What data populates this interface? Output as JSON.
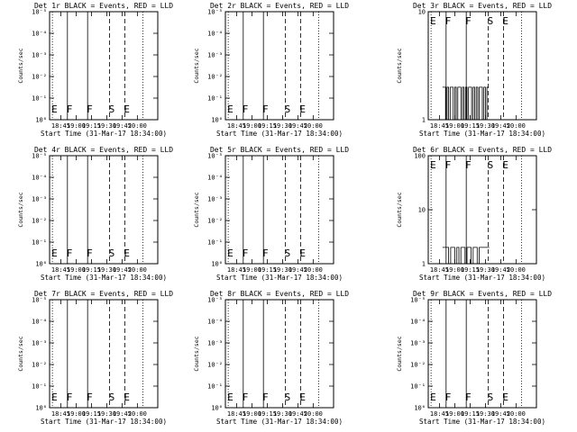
{
  "figure": {
    "x_tick_labels": [
      "18:45",
      "19:00",
      "19:15",
      "19:30",
      "19:45",
      "20:00"
    ],
    "xlabel": "Start Time (31-Mar-17 18:34:00)",
    "ylabel": "Counts/sec",
    "event_letters": [
      "E",
      "F",
      "F",
      "S",
      "E"
    ],
    "colors": {
      "events": "#000000",
      "lld": "#ff0000",
      "background": "#ffffff"
    }
  },
  "chart_data": [
    {
      "id": "1r",
      "type": "line",
      "title": "Det 1r BLACK = Events, RED = LLD",
      "yscale": "log",
      "y_tick_labels": [
        "10⁰",
        "10⁻¹",
        "10⁻²",
        "10⁻³",
        "10⁻⁴",
        "10⁻⁵"
      ],
      "xlim": [
        "18:34:00",
        "20:20:00"
      ],
      "event_markers": [
        {
          "label": "E",
          "time": "18:36:45",
          "style": "dotted"
        },
        {
          "label": "F",
          "time": "18:51:30",
          "style": "solid"
        },
        {
          "label": "F",
          "time": "19:11:15",
          "style": "solid"
        },
        {
          "label": "S",
          "time": "19:32:50",
          "style": "dashed"
        },
        {
          "label": "E",
          "time": "19:47:40",
          "style": "dashed"
        },
        {
          "label": "",
          "time": "20:05:20",
          "style": "dotted"
        }
      ],
      "series": []
    },
    {
      "id": "2r",
      "type": "line",
      "title": "Det 2r BLACK = Events, RED = LLD",
      "yscale": "log",
      "y_tick_labels": [
        "10⁰",
        "10⁻¹",
        "10⁻²",
        "10⁻³",
        "10⁻⁴",
        "10⁻⁵"
      ],
      "xlim": [
        "18:34:00",
        "20:20:00"
      ],
      "event_markers": [
        {
          "label": "E",
          "time": "18:36:45",
          "style": "dotted"
        },
        {
          "label": "F",
          "time": "18:51:30",
          "style": "solid"
        },
        {
          "label": "F",
          "time": "19:11:15",
          "style": "solid"
        },
        {
          "label": "S",
          "time": "19:32:50",
          "style": "dashed"
        },
        {
          "label": "E",
          "time": "19:47:40",
          "style": "dashed"
        },
        {
          "label": "",
          "time": "20:05:20",
          "style": "dotted"
        }
      ],
      "series": []
    },
    {
      "id": "3r",
      "type": "line",
      "title": "Det 3r BLACK = Events, RED = LLD",
      "yscale": "log",
      "y_tick_labels": [
        "1",
        "10"
      ],
      "xlim": [
        "18:34:00",
        "20:20:00"
      ],
      "event_markers": [
        {
          "label": "E",
          "time": "18:36:45",
          "style": "dotted"
        },
        {
          "label": "F",
          "time": "18:51:30",
          "style": "solid"
        },
        {
          "label": "F",
          "time": "19:11:15",
          "style": "solid"
        },
        {
          "label": "S",
          "time": "19:32:50",
          "style": "dashed"
        },
        {
          "label": "E",
          "time": "19:47:40",
          "style": "dashed"
        },
        {
          "label": "",
          "time": "20:05:20",
          "style": "dotted"
        }
      ],
      "series": [
        {
          "role": "events",
          "color": "#000000",
          "times": [
            "18:48:00",
            "18:49:30",
            "18:51:00",
            "18:52:30",
            "18:54:00",
            "18:55:30",
            "18:57:00",
            "18:58:30",
            "19:00:00",
            "19:01:30",
            "19:03:00",
            "19:04:30",
            "19:06:00",
            "19:07:30",
            "19:09:00",
            "19:10:30",
            "19:12:00",
            "19:13:30",
            "19:15:00",
            "19:16:30",
            "19:18:00",
            "19:19:30",
            "19:21:00",
            "19:22:30",
            "19:24:00",
            "19:25:30",
            "19:27:00",
            "19:28:30",
            "19:30:00",
            "19:31:30"
          ],
          "values": [
            2,
            2,
            1,
            2,
            1,
            2,
            2,
            1,
            2,
            1,
            2,
            2,
            1,
            2,
            1,
            2,
            1,
            2,
            2,
            1,
            2,
            1,
            2,
            1,
            2,
            2,
            1,
            2,
            1,
            2
          ]
        }
      ]
    },
    {
      "id": "4r",
      "type": "line",
      "title": "Det 4r BLACK = Events, RED = LLD",
      "yscale": "log",
      "y_tick_labels": [
        "10⁰",
        "10⁻¹",
        "10⁻²",
        "10⁻³",
        "10⁻⁴",
        "10⁻⁵"
      ],
      "xlim": [
        "18:34:00",
        "20:20:00"
      ],
      "event_markers": [
        {
          "label": "E",
          "time": "18:36:45",
          "style": "dotted"
        },
        {
          "label": "F",
          "time": "18:51:30",
          "style": "solid"
        },
        {
          "label": "F",
          "time": "19:11:15",
          "style": "solid"
        },
        {
          "label": "S",
          "time": "19:32:50",
          "style": "dashed"
        },
        {
          "label": "E",
          "time": "19:47:40",
          "style": "dashed"
        },
        {
          "label": "",
          "time": "20:05:20",
          "style": "dotted"
        }
      ],
      "series": []
    },
    {
      "id": "5r",
      "type": "line",
      "title": "Det 5r BLACK = Events, RED = LLD",
      "yscale": "log",
      "y_tick_labels": [
        "10⁰",
        "10⁻¹",
        "10⁻²",
        "10⁻³",
        "10⁻⁴",
        "10⁻⁵"
      ],
      "xlim": [
        "18:34:00",
        "20:20:00"
      ],
      "event_markers": [
        {
          "label": "E",
          "time": "18:36:45",
          "style": "dotted"
        },
        {
          "label": "F",
          "time": "18:51:30",
          "style": "solid"
        },
        {
          "label": "F",
          "time": "19:11:15",
          "style": "solid"
        },
        {
          "label": "S",
          "time": "19:32:50",
          "style": "dashed"
        },
        {
          "label": "E",
          "time": "19:47:40",
          "style": "dashed"
        },
        {
          "label": "",
          "time": "20:05:20",
          "style": "dotted"
        }
      ],
      "series": []
    },
    {
      "id": "6r",
      "type": "line",
      "title": "Det 6r BLACK = Events, RED = LLD",
      "yscale": "log",
      "y_tick_labels": [
        "1",
        "10",
        "100"
      ],
      "xlim": [
        "18:34:00",
        "20:20:00"
      ],
      "event_markers": [
        {
          "label": "E",
          "time": "18:36:45",
          "style": "dotted"
        },
        {
          "label": "F",
          "time": "18:51:30",
          "style": "solid"
        },
        {
          "label": "F",
          "time": "19:11:15",
          "style": "solid"
        },
        {
          "label": "S",
          "time": "19:32:50",
          "style": "dashed"
        },
        {
          "label": "E",
          "time": "19:47:40",
          "style": "dashed"
        },
        {
          "label": "",
          "time": "20:05:20",
          "style": "dotted"
        }
      ],
      "series": [
        {
          "role": "events",
          "color": "#000000",
          "times": [
            "18:48:00",
            "18:50:00",
            "18:52:00",
            "18:54:00",
            "18:56:00",
            "18:58:00",
            "19:00:00",
            "19:02:00",
            "19:04:00",
            "19:06:00",
            "19:08:00",
            "19:10:00",
            "19:12:00",
            "19:14:00",
            "19:16:00",
            "19:18:00",
            "19:20:00",
            "19:22:00",
            "19:24:00",
            "19:26:00",
            "19:28:00",
            "19:30:00",
            "19:32:00"
          ],
          "values": [
            2,
            2,
            2,
            1,
            2,
            2,
            1,
            2,
            1,
            2,
            2,
            1,
            2,
            2,
            1,
            2,
            2,
            1,
            2,
            2,
            2,
            2,
            2
          ]
        }
      ]
    },
    {
      "id": "7r",
      "type": "line",
      "title": "Det 7r BLACK = Events, RED = LLD",
      "yscale": "log",
      "y_tick_labels": [
        "10⁰",
        "10⁻¹",
        "10⁻²",
        "10⁻³",
        "10⁻⁴",
        "10⁻⁵"
      ],
      "xlim": [
        "18:34:00",
        "20:20:00"
      ],
      "event_markers": [
        {
          "label": "E",
          "time": "18:36:45",
          "style": "dotted"
        },
        {
          "label": "F",
          "time": "18:51:30",
          "style": "solid"
        },
        {
          "label": "F",
          "time": "19:11:15",
          "style": "solid"
        },
        {
          "label": "S",
          "time": "19:32:50",
          "style": "dashed"
        },
        {
          "label": "E",
          "time": "19:47:40",
          "style": "dashed"
        },
        {
          "label": "",
          "time": "20:05:20",
          "style": "dotted"
        }
      ],
      "series": []
    },
    {
      "id": "8r",
      "type": "line",
      "title": "Det 8r BLACK = Events, RED = LLD",
      "yscale": "log",
      "y_tick_labels": [
        "10⁰",
        "10⁻¹",
        "10⁻²",
        "10⁻³",
        "10⁻⁴",
        "10⁻⁵"
      ],
      "xlim": [
        "18:34:00",
        "20:20:00"
      ],
      "event_markers": [
        {
          "label": "E",
          "time": "18:36:45",
          "style": "dotted"
        },
        {
          "label": "F",
          "time": "18:51:30",
          "style": "solid"
        },
        {
          "label": "F",
          "time": "19:11:15",
          "style": "solid"
        },
        {
          "label": "S",
          "time": "19:32:50",
          "style": "dashed"
        },
        {
          "label": "E",
          "time": "19:47:40",
          "style": "dashed"
        },
        {
          "label": "",
          "time": "20:05:20",
          "style": "dotted"
        }
      ],
      "series": []
    },
    {
      "id": "9r",
      "type": "line",
      "title": "Det 9r BLACK = Events, RED = LLD",
      "yscale": "log",
      "y_tick_labels": [
        "10⁰",
        "10⁻¹",
        "10⁻²",
        "10⁻³",
        "10⁻⁴",
        "10⁻⁵"
      ],
      "xlim": [
        "18:34:00",
        "20:20:00"
      ],
      "event_markers": [
        {
          "label": "E",
          "time": "18:36:45",
          "style": "dotted"
        },
        {
          "label": "F",
          "time": "18:51:30",
          "style": "solid"
        },
        {
          "label": "F",
          "time": "19:11:15",
          "style": "solid"
        },
        {
          "label": "S",
          "time": "19:32:50",
          "style": "dashed"
        },
        {
          "label": "E",
          "time": "19:47:40",
          "style": "dashed"
        },
        {
          "label": "",
          "time": "20:05:20",
          "style": "dotted"
        }
      ],
      "series": []
    }
  ]
}
